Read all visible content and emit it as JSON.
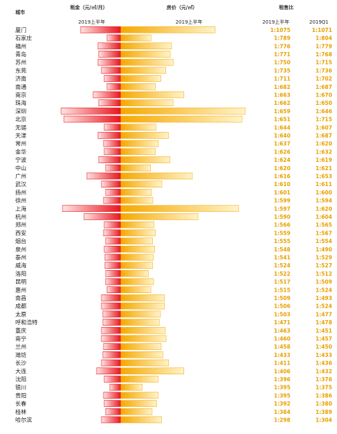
{
  "headers": {
    "city": "城市",
    "rent": "租金（元/㎡/月）",
    "price": "房价（元/㎡）",
    "ratio": "租售比",
    "rent_period": "2019上半年",
    "price_period": "2019上半年",
    "ratio_period_a": "2019上半年",
    "ratio_period_b": "2019Q1"
  },
  "colors": {
    "rent": "#e8141c",
    "price": "#f5b01e",
    "ratio_text": "#e8a000"
  },
  "chart_data": {
    "type": "bar",
    "categories": [
      "厦门",
      "石家庄",
      "福州",
      "青岛",
      "苏州",
      "东莞",
      "济南",
      "南通",
      "南京",
      "珠海",
      "深圳",
      "北京",
      "无锡",
      "天津",
      "常州",
      "金华",
      "宁波",
      "中山",
      "广州",
      "武汉",
      "扬州",
      "徐州",
      "上海",
      "杭州",
      "郑州",
      "西安",
      "烟台",
      "泉州",
      "泰州",
      "威海",
      "洛阳",
      "昆明",
      "惠州",
      "南昌",
      "成都",
      "太原",
      "呼和浩特",
      "重庆",
      "南宁",
      "兰州",
      "潍坊",
      "长沙",
      "大连",
      "沈阳",
      "银川",
      "贵阳",
      "长春",
      "桂林",
      "哈尔滨"
    ],
    "series": [
      {
        "name": "租金（元/㎡/月）",
        "values": [
          58,
          20,
          33,
          32,
          33,
          28,
          24,
          20,
          40,
          32,
          86,
          82,
          24,
          33,
          25,
          24,
          32,
          22,
          49,
          28,
          22,
          25,
          84,
          53,
          24,
          25,
          22,
          24,
          23,
          23,
          22,
          22,
          20,
          28,
          28,
          26,
          26,
          28,
          28,
          25,
          26,
          28,
          35,
          24,
          16,
          25,
          24,
          22,
          28
        ]
      },
      {
        "name": "房价（元/㎡）",
        "values": [
          47590,
          15180,
          25580,
          24920,
          26400,
          22700,
          20190,
          17490,
          31820,
          26350,
          62840,
          61160,
          17690,
          24040,
          18930,
          17490,
          24830,
          14970,
          36090,
          20710,
          15450,
          16130,
          59430,
          38970,
          16680,
          17390,
          16020,
          17130,
          16450,
          16050,
          13890,
          16480,
          15130,
          22010,
          22020,
          19980,
          19400,
          22400,
          22820,
          20340,
          21190,
          24120,
          31830,
          18780,
          10750,
          18770,
          18080,
          15770,
          20550
        ]
      },
      {
        "name": "2019上半年",
        "values": [
          "1:1075",
          "1:789",
          "1:776",
          "1:771",
          "1:750",
          "1:735",
          "1:711",
          "1:682",
          "1:663",
          "1:662",
          "1:659",
          "1:651",
          "1:644",
          "1:640",
          "1:637",
          "1:626",
          "1:624",
          "1:620",
          "1:616",
          "1:610",
          "1:601",
          "1:599",
          "1:597",
          "1:590",
          "1:566",
          "1:559",
          "1:555",
          "1:548",
          "1:541",
          "1:524",
          "1:522",
          "1:517",
          "1:515",
          "1:509",
          "1:506",
          "1:503",
          "1:471",
          "1:463",
          "1:460",
          "1:458",
          "1:433",
          "1:411",
          "1:406",
          "1:396",
          "1:395",
          "1:395",
          "1:392",
          "1:384",
          "1:298"
        ]
      },
      {
        "name": "2019Q1",
        "values": [
          "1:1071",
          "1:804",
          "1:779",
          "1:768",
          "1:715",
          "1:736",
          "1:702",
          "1:687",
          "1:670",
          "1:650",
          "1:646",
          "1:715",
          "1:607",
          "1:687",
          "1:620",
          "1:632",
          "1:619",
          "1:621",
          "1:653",
          "1:611",
          "1:600",
          "1:594",
          "1:620",
          "1:604",
          "1:565",
          "1:567",
          "1:554",
          "1:490",
          "1:529",
          "1:527",
          "1:512",
          "1:509",
          "1:524",
          "1:493",
          "1:524",
          "1:477",
          "1:478",
          "1:451",
          "1:457",
          "1:450",
          "1:433",
          "1:436",
          "1:432",
          "1:376",
          "1:375",
          "1:386",
          "1:380",
          "1:389",
          "1:304"
        ]
      }
    ],
    "rent_max": 90,
    "price_max": 66000
  }
}
